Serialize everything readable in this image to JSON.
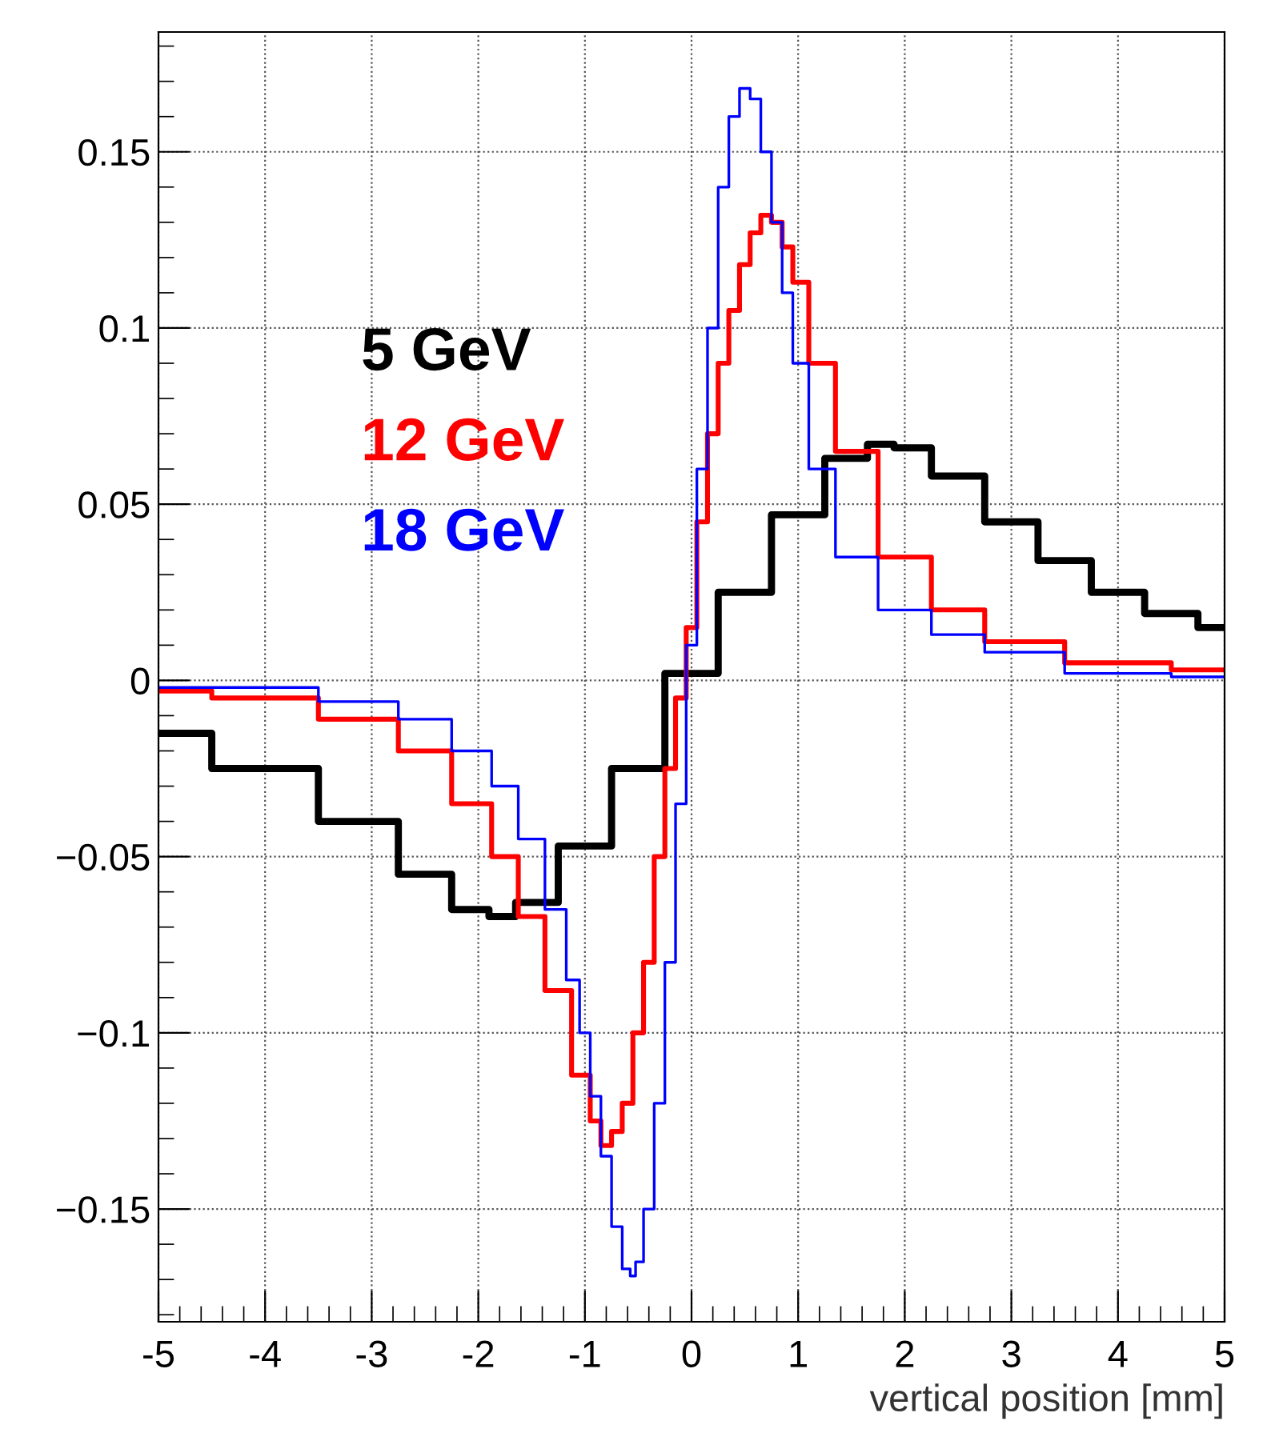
{
  "chart_data": {
    "type": "step",
    "xlabel": "vertical position [mm]",
    "xlim": [
      -5,
      5
    ],
    "xticks": [
      -5,
      -4,
      -3,
      -2,
      -1,
      0,
      1,
      2,
      3,
      4,
      5
    ],
    "ylim": [
      -0.182,
      0.184
    ],
    "yticks": [
      {
        "value": -0.15,
        "label": "−0.15"
      },
      {
        "value": -0.1,
        "label": "−0.1"
      },
      {
        "value": -0.05,
        "label": "−0.05"
      },
      0,
      0.05,
      0.1,
      0.15
    ],
    "grid": true,
    "legend": "left",
    "series": [
      {
        "name": "5 GeV",
        "color": "#000000",
        "x": [
          -5,
          -4,
          -3,
          -2.5,
          -2,
          -1.8,
          -1.5,
          -1.0,
          -0.5,
          0,
          0.5,
          1.0,
          1.5,
          1.8,
          2,
          2.5,
          3,
          3.5,
          4,
          4.5,
          5
        ],
        "values": [
          -0.015,
          -0.025,
          -0.04,
          -0.055,
          -0.065,
          -0.067,
          -0.063,
          -0.047,
          -0.025,
          0.002,
          0.025,
          0.047,
          0.063,
          0.067,
          0.066,
          0.058,
          0.045,
          0.034,
          0.025,
          0.019,
          0.015
        ]
      },
      {
        "name": "12 GeV",
        "color": "#ff0000",
        "x": [
          -5,
          -4,
          -3,
          -2.5,
          -2,
          -1.75,
          -1.5,
          -1.25,
          -1.0,
          -0.9,
          -0.8,
          -0.7,
          -0.6,
          -0.5,
          -0.4,
          -0.3,
          -0.2,
          -0.1,
          0,
          0.1,
          0.2,
          0.3,
          0.4,
          0.5,
          0.6,
          0.7,
          0.8,
          0.9,
          1.0,
          1.2,
          1.5,
          2,
          2.5,
          3,
          4,
          5
        ],
        "values": [
          -0.003,
          -0.005,
          -0.011,
          -0.02,
          -0.035,
          -0.05,
          -0.067,
          -0.088,
          -0.112,
          -0.125,
          -0.132,
          -0.128,
          -0.12,
          -0.1,
          -0.08,
          -0.05,
          -0.025,
          -0.005,
          0.015,
          0.045,
          0.07,
          0.09,
          0.105,
          0.118,
          0.127,
          0.132,
          0.13,
          0.123,
          0.113,
          0.09,
          0.065,
          0.035,
          0.02,
          0.011,
          0.005,
          0.003
        ]
      },
      {
        "name": "18 GeV",
        "color": "#0000ff",
        "x": [
          -5,
          -4,
          -3,
          -2.5,
          -2,
          -1.75,
          -1.5,
          -1.25,
          -1.1,
          -1.0,
          -0.9,
          -0.8,
          -0.7,
          -0.6,
          -0.55,
          -0.5,
          -0.4,
          -0.3,
          -0.2,
          -0.1,
          0,
          0.1,
          0.2,
          0.3,
          0.4,
          0.5,
          0.6,
          0.7,
          0.8,
          0.9,
          1.0,
          1.2,
          1.5,
          2,
          2.5,
          3,
          4,
          5
        ],
        "values": [
          -0.002,
          -0.002,
          -0.006,
          -0.011,
          -0.02,
          -0.03,
          -0.045,
          -0.065,
          -0.085,
          -0.1,
          -0.118,
          -0.135,
          -0.155,
          -0.167,
          -0.169,
          -0.165,
          -0.15,
          -0.12,
          -0.08,
          -0.035,
          0.01,
          0.06,
          0.1,
          0.14,
          0.16,
          0.168,
          0.165,
          0.15,
          0.13,
          0.11,
          0.09,
          0.06,
          0.035,
          0.02,
          0.013,
          0.008,
          0.002,
          0.001
        ]
      }
    ]
  }
}
